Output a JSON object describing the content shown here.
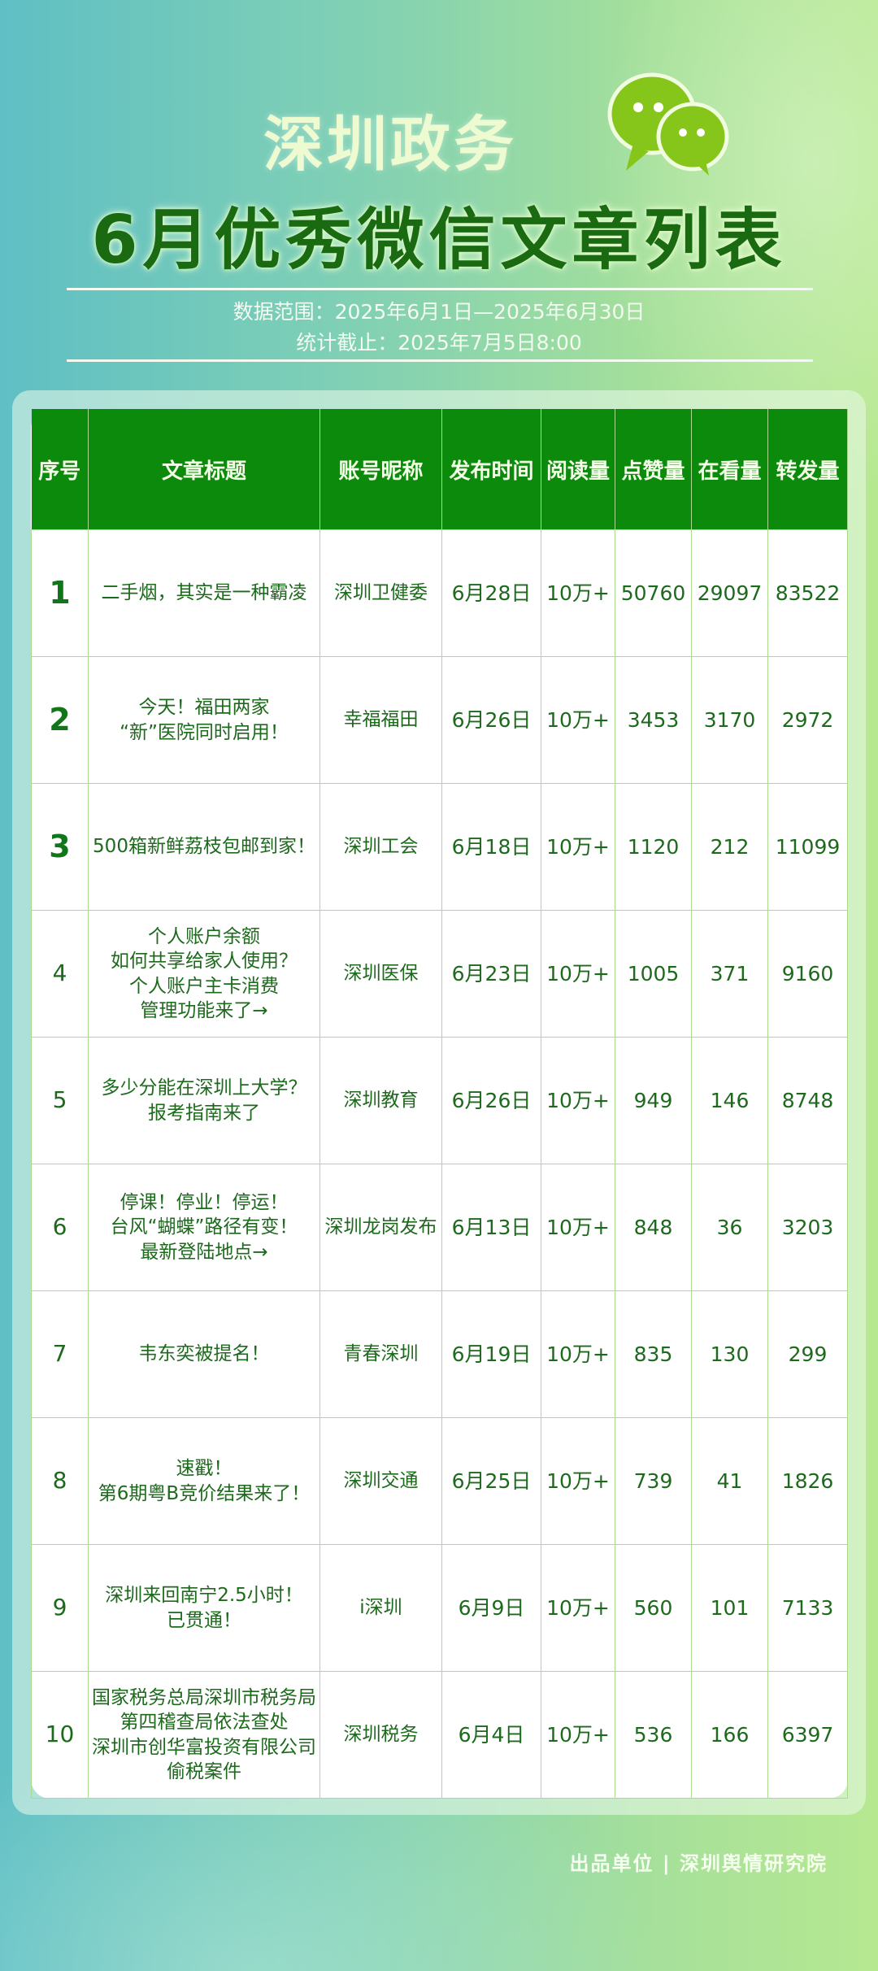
{
  "header": {
    "brand": "深圳政务",
    "title": "6月优秀微信文章列表",
    "data_range": "数据范围：2025年6月1日—2025年6月30日",
    "cutoff": "统计截止：2025年7月5日8:00"
  },
  "colors": {
    "header_bg": "#0b8a0b",
    "text": "#1d6a1d",
    "grid": "#a8dc8c"
  },
  "table": {
    "columns": [
      "序号",
      "文章标题",
      "账号昵称",
      "发布时间",
      "阅读量",
      "点赞量",
      "在看量",
      "转发量"
    ],
    "rows": [
      {
        "rank": "1",
        "title": "二手烟，其实是一种霸凌",
        "account": "深圳卫健委",
        "date": "6月28日",
        "reads": "10万+",
        "likes": "50760",
        "watching": "29097",
        "shares": "83522"
      },
      {
        "rank": "2",
        "title": "今天！福田两家\n“新”医院同时启用！",
        "account": "幸福福田",
        "date": "6月26日",
        "reads": "10万+",
        "likes": "3453",
        "watching": "3170",
        "shares": "2972"
      },
      {
        "rank": "3",
        "title": "500箱新鲜荔枝包邮到家！",
        "account": "深圳工会",
        "date": "6月18日",
        "reads": "10万+",
        "likes": "1120",
        "watching": "212",
        "shares": "11099"
      },
      {
        "rank": "4",
        "title": "个人账户余额\n如何共享给家人使用？\n个人账户主卡消费\n管理功能来了→",
        "account": "深圳医保",
        "date": "6月23日",
        "reads": "10万+",
        "likes": "1005",
        "watching": "371",
        "shares": "9160"
      },
      {
        "rank": "5",
        "title": "多少分能在深圳上大学？\n报考指南来了",
        "account": "深圳教育",
        "date": "6月26日",
        "reads": "10万+",
        "likes": "949",
        "watching": "146",
        "shares": "8748"
      },
      {
        "rank": "6",
        "title": "停课！停业！停运！\n台风“蝴蝶”路径有变！\n最新登陆地点→",
        "account": "深圳龙岗发布",
        "date": "6月13日",
        "reads": "10万+",
        "likes": "848",
        "watching": "36",
        "shares": "3203"
      },
      {
        "rank": "7",
        "title": "韦东奕被提名！",
        "account": "青春深圳",
        "date": "6月19日",
        "reads": "10万+",
        "likes": "835",
        "watching": "130",
        "shares": "299"
      },
      {
        "rank": "8",
        "title": "速戳！\n第6期粤B竞价结果来了！",
        "account": "深圳交通",
        "date": "6月25日",
        "reads": "10万+",
        "likes": "739",
        "watching": "41",
        "shares": "1826"
      },
      {
        "rank": "9",
        "title": "深圳来回南宁2.5小时！\n已贯通！",
        "account": "i深圳",
        "date": "6月9日",
        "reads": "10万+",
        "likes": "560",
        "watching": "101",
        "shares": "7133"
      },
      {
        "rank": "10",
        "title": "国家税务总局深圳市税务局\n第四稽查局依法查处\n深圳市创华富投资有限公司\n偷税案件",
        "account": "深圳税务",
        "date": "6月4日",
        "reads": "10万+",
        "likes": "536",
        "watching": "166",
        "shares": "6397"
      }
    ]
  },
  "footer": {
    "credit": "出品单位 | 深圳舆情研究院"
  }
}
